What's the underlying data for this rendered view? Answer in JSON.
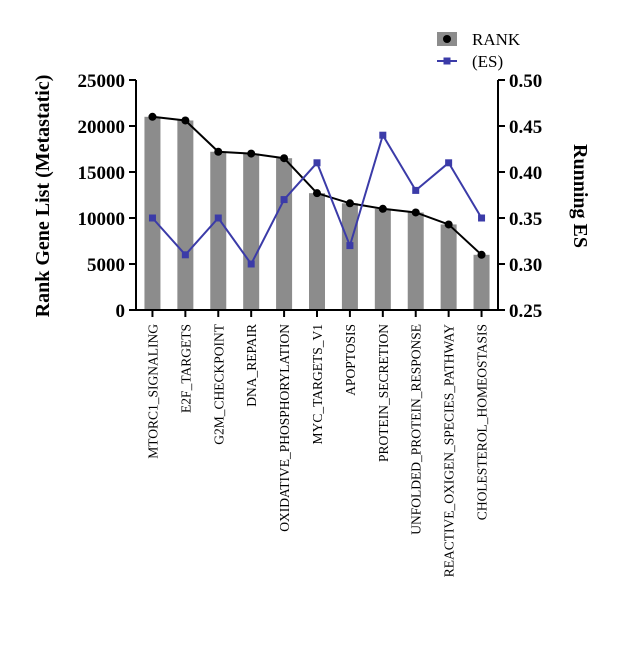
{
  "chart_data": {
    "type": "bar",
    "categories": [
      "MTORC1_SIGNALING",
      "E2F_TARGETS",
      "G2M_CHECKPOINT",
      "DNA_REPAIR",
      "OXIDATIVE_PHOSPHORYLATION",
      "MYC_TARGETS_V1",
      "APOPTOSIS",
      "PROTEIN_SECRETION",
      "UNFOLDED_PROTEIN_RESPONSE",
      "REACTIVE_OXIGEN_SPECIES_PATHWAY",
      "CHOLESTEROL_HOMEOSTASIS"
    ],
    "series": [
      {
        "name": "RANK",
        "axis": "left",
        "style": "bar+line",
        "values": [
          21000,
          20600,
          17200,
          17000,
          16500,
          12700,
          11600,
          11000,
          10600,
          9300,
          6000
        ]
      },
      {
        "name": "(ES)",
        "axis": "right",
        "style": "line",
        "values": [
          0.35,
          0.31,
          0.35,
          0.3,
          0.37,
          0.41,
          0.32,
          0.44,
          0.38,
          0.41,
          0.35
        ]
      }
    ],
    "ylabel": "Rank Gene List (Metastatic)",
    "ylabel_right": "Running ES",
    "ylim": [
      0,
      25000
    ],
    "yticks": [
      "0",
      "5000",
      "10000",
      "15000",
      "20000",
      "25000"
    ],
    "ylim_right": [
      0.25,
      0.5
    ],
    "yticks_right": [
      "0.25",
      "0.30",
      "0.35",
      "0.40",
      "0.45",
      "0.50"
    ],
    "legend_position": "top-right",
    "grid": false,
    "colors": {
      "bar": "#8c8c8c",
      "rank_line": "#000000",
      "es_line": "#3b3ba8"
    }
  }
}
